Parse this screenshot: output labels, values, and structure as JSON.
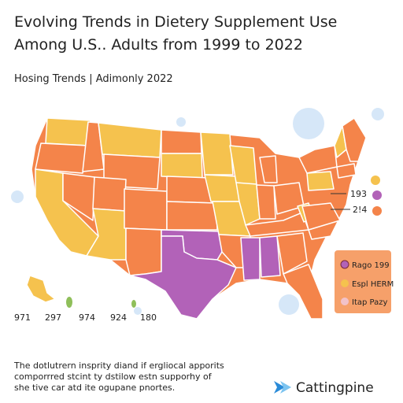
{
  "header": {
    "title_lines": [
      "Evolving Trends in Dietery Supplement Use",
      "Among U.S.. Adults from 1999 to 2022"
    ],
    "subtitle": "Hosing Trends  | Adimonly 2022"
  },
  "map_labels": [
    "193",
    "2!4"
  ],
  "legend": {
    "items": [
      "Rago 199",
      "Espl HERM",
      "Itap Pazy"
    ]
  },
  "scale_labels": [
    "971",
    "297",
    "974",
    "924",
    "180"
  ],
  "footer": {
    "lines": [
      "The dotlutrern insprity diand if ergliocal apporits",
      "comporrred stcint ty dstilow estn supporhy of",
      "she tive car atd ite ogupane pnortes."
    ]
  },
  "logo": {
    "text": "Cattingpine"
  }
}
